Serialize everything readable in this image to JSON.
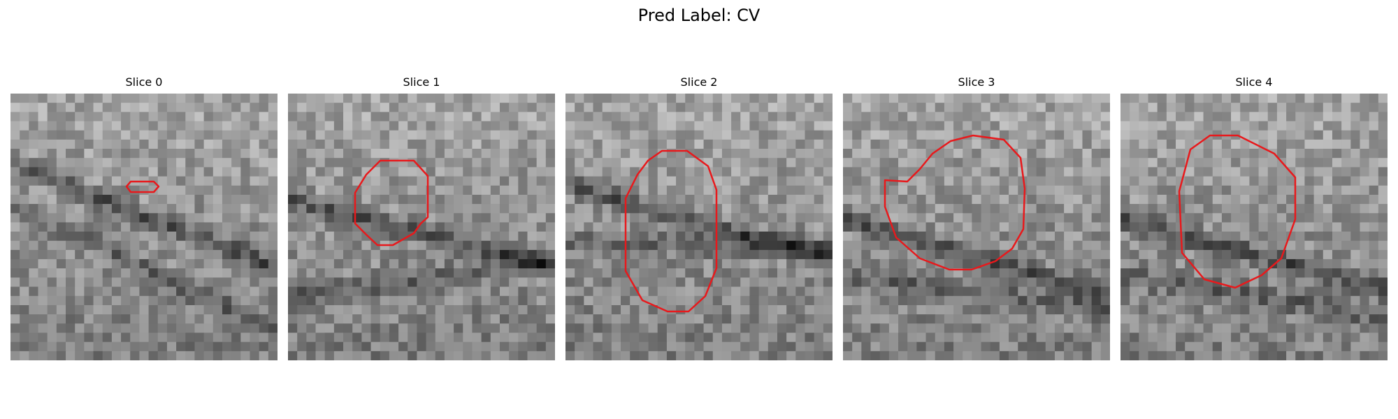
{
  "figure": {
    "title": "Pred Label: CV"
  },
  "panels": [
    {
      "title": "Slice 0",
      "seed": 11
    },
    {
      "title": "Slice 1",
      "seed": 23
    },
    {
      "title": "Slice 2",
      "seed": 37
    },
    {
      "title": "Slice 3",
      "seed": 51
    },
    {
      "title": "Slice 4",
      "seed": 67
    }
  ],
  "colors": {
    "contour": "#e8191c"
  },
  "icons": []
}
